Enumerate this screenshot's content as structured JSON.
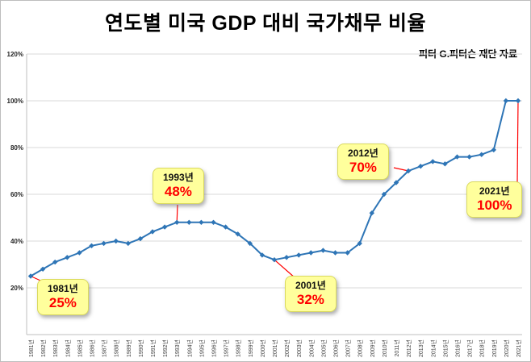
{
  "chart_data": {
    "type": "line",
    "title": "연도별 미국 GDP 대비 국가채무 비율",
    "source": "피터 G.피터슨 재단 자료",
    "series_name": "GDP 대비 국가채무 비율",
    "xlabel": "",
    "ylabel": "",
    "ylim": [
      0,
      120
    ],
    "ytick_step": 20,
    "ytick_suffix": "%",
    "grid": true,
    "legend": "none",
    "categories": [
      "1981년",
      "1982년",
      "1983년",
      "1984년",
      "1985년",
      "1986년",
      "1987년",
      "1988년",
      "1989년",
      "1990년",
      "1991년",
      "1992년",
      "1993년",
      "1994년",
      "1995년",
      "1996년",
      "1997년",
      "1998년",
      "1999년",
      "2000년",
      "2001년",
      "2002년",
      "2003년",
      "2004년",
      "2005년",
      "2006년",
      "2007년",
      "2008년",
      "2009년",
      "2010년",
      "2011년",
      "2012년",
      "2013년",
      "2014년",
      "2015년",
      "2016년",
      "2017년",
      "2018년",
      "2019년",
      "2020년",
      "2021년"
    ],
    "values": [
      25,
      28,
      31,
      33,
      35,
      38,
      39,
      40,
      39,
      41,
      44,
      46,
      48,
      48,
      48,
      48,
      46,
      43,
      39,
      34,
      32,
      33,
      34,
      35,
      36,
      35,
      35,
      39,
      52,
      60,
      65,
      70,
      72,
      74,
      73,
      76,
      76,
      77,
      79,
      100,
      100
    ],
    "colors": {
      "line": "#2E75B6",
      "grid": "#D9D9D9",
      "axis": "#BFBFBF",
      "tick_text": "#404040",
      "callout_bg": "#FFFF9C",
      "annotation": "#FF0000"
    },
    "callouts": [
      {
        "year_label": "1981년",
        "value_label": "25%",
        "target_index": 0
      },
      {
        "year_label": "1993년",
        "value_label": "48%",
        "target_index": 12
      },
      {
        "year_label": "2001년",
        "value_label": "32%",
        "target_index": 20
      },
      {
        "year_label": "2012년",
        "value_label": "70%",
        "target_index": 31
      },
      {
        "year_label": "2021년",
        "value_label": "100%",
        "target_index": 40
      }
    ]
  }
}
